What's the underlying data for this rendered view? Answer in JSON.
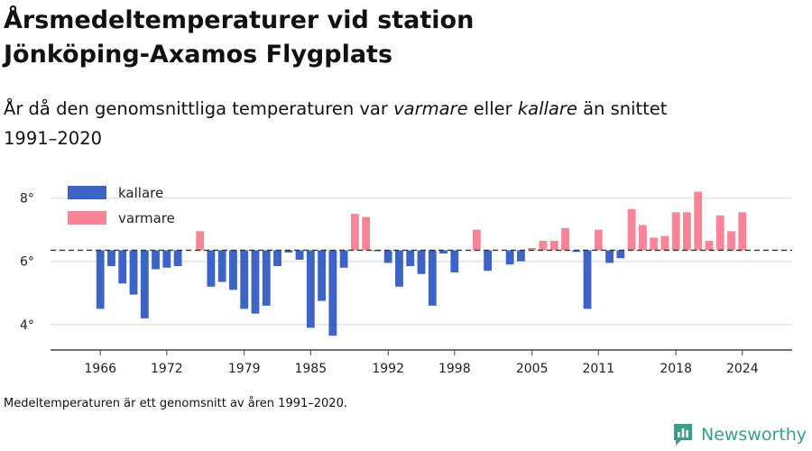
{
  "header": {
    "title_line1": "Årsmedeltemperaturer vid station",
    "title_line2": "Jönköping-Axamos Flygplats",
    "subtitle_pre": "År då den genomsnittliga temperaturen var ",
    "subtitle_em1": "varmare",
    "subtitle_mid": " eller ",
    "subtitle_em2": "kallare",
    "subtitle_post": " än snittet",
    "subtitle_line2": "1991–2020"
  },
  "footnote": "Medeltemperaturen är ett genomsnitt av åren 1991–2020.",
  "brand": {
    "name": "Newsworthy",
    "icon": "newsworthy-logo-icon",
    "color": "#3a9f8a"
  },
  "chart_data": {
    "type": "bar",
    "baseline": 6.35,
    "ylim": [
      3.2,
      8.7
    ],
    "yticks": [
      4,
      6,
      8
    ],
    "ytick_labels": [
      "4°",
      "6°",
      "8°"
    ],
    "xticks": [
      1966,
      1972,
      1979,
      1985,
      1992,
      1998,
      2005,
      2011,
      2018,
      2024
    ],
    "xtick_labels": [
      "1966",
      "1972",
      "1979",
      "1985",
      "1992",
      "1998",
      "2005",
      "2011",
      "2018",
      "2024"
    ],
    "xlim": [
      1961.5,
      2028.5
    ],
    "legend": {
      "placement": "top-left",
      "entries": [
        {
          "label": "kallare",
          "color": "#3d63c4"
        },
        {
          "label": "varmare",
          "color": "#f88597"
        }
      ]
    },
    "colors": {
      "colder": "#3d63c4",
      "warmer": "#f88597",
      "grid": "#e3e3e3",
      "axis": "#444444",
      "baseline": "#333333"
    },
    "years": [
      1966,
      1967,
      1968,
      1969,
      1970,
      1971,
      1972,
      1973,
      1975,
      1976,
      1977,
      1978,
      1979,
      1980,
      1981,
      1982,
      1983,
      1984,
      1985,
      1986,
      1987,
      1988,
      1989,
      1990,
      1991,
      1992,
      1993,
      1994,
      1995,
      1996,
      1997,
      1998,
      2000,
      2001,
      2003,
      2004,
      2005,
      2006,
      2007,
      2008,
      2009,
      2010,
      2011,
      2012,
      2013,
      2014,
      2015,
      2016,
      2017,
      2018,
      2019,
      2020,
      2021,
      2022,
      2023,
      2024
    ],
    "values": [
      4.5,
      5.85,
      5.3,
      4.95,
      4.2,
      5.75,
      5.8,
      5.85,
      6.95,
      5.2,
      5.35,
      5.1,
      4.5,
      4.35,
      4.6,
      5.85,
      6.28,
      6.05,
      3.9,
      4.75,
      3.65,
      5.8,
      7.5,
      7.4,
      6.32,
      5.95,
      5.2,
      5.85,
      5.6,
      4.6,
      6.25,
      5.65,
      7.0,
      5.7,
      5.9,
      6.0,
      6.42,
      6.65,
      6.65,
      7.05,
      6.3,
      4.5,
      7.0,
      5.95,
      6.1,
      7.65,
      7.15,
      6.75,
      6.8,
      7.55,
      7.55,
      8.2,
      6.65,
      7.45,
      6.95,
      7.55
    ]
  }
}
